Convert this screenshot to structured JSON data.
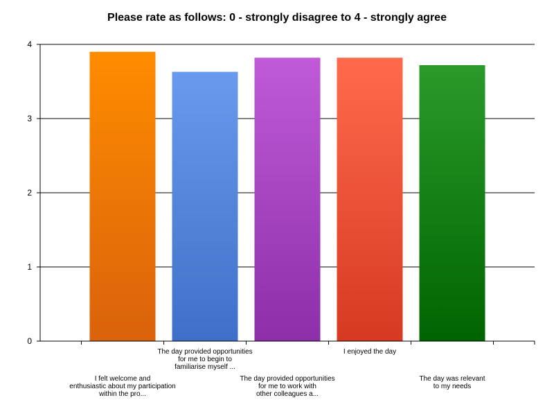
{
  "chart_data": {
    "type": "bar",
    "title": "Please rate as follows: 0 - strongly disagree to 4 - strongly agree",
    "xlabel": "",
    "ylabel": "",
    "ylim": [
      0,
      4
    ],
    "yticks": [
      "0",
      "1",
      "2",
      "3",
      "4"
    ],
    "grid": true,
    "categories": [
      [
        "I felt welcome and",
        "enthusiastic about my participation",
        "within the pro..."
      ],
      [
        "The day provided opportunities",
        "for me to begin to",
        "familiarise myself ..."
      ],
      [
        "The day provided opportunities",
        "for me to work with",
        "other colleagues a..."
      ],
      [
        "I enjoyed the day"
      ],
      [
        "The day was relevant",
        "to my needs"
      ]
    ],
    "values": [
      3.9,
      3.63,
      3.82,
      3.82,
      3.72
    ],
    "colors": [
      [
        "#ff8c00",
        "#d9620b"
      ],
      [
        "#6a9aee",
        "#3f6fc7"
      ],
      [
        "#c05ad8",
        "#8c2fa8"
      ],
      [
        "#ff6a4c",
        "#d63a22"
      ],
      [
        "#2a9a2a",
        "#006400"
      ]
    ]
  }
}
